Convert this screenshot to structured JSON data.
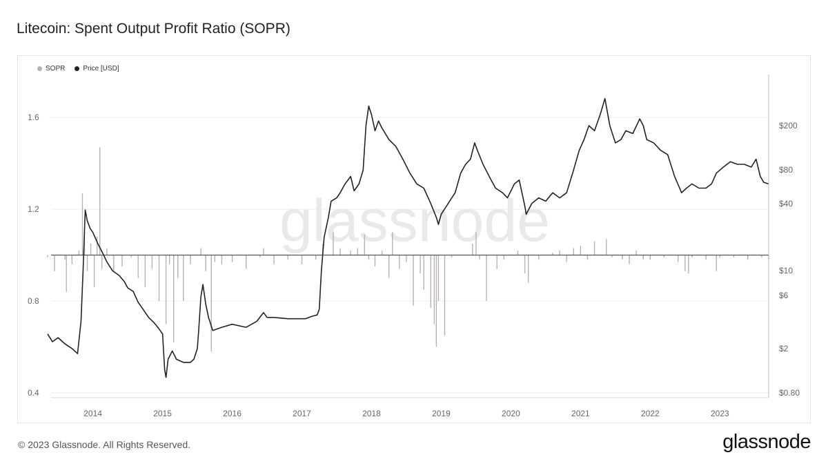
{
  "header": {
    "title": "Litecoin: Spent Output Profit Ratio (SOPR)"
  },
  "footer": {
    "copyright": "© 2023 Glassnode. All Rights Reserved.",
    "brand": "glassnode",
    "watermark": "glassnode"
  },
  "colors": {
    "sopr": "#b8b1b0",
    "price": "#222222",
    "grid": "#ececec",
    "axis": "#666666",
    "baseline": "#555555"
  },
  "chart_data": {
    "type": "line",
    "series": [
      {
        "name": "SOPR",
        "axis": "left",
        "points": [
          [
            2013.35,
            0.99
          ],
          [
            2013.45,
            0.93
          ],
          [
            2013.6,
            0.98
          ],
          [
            2013.62,
            0.84
          ],
          [
            2013.7,
            0.96
          ],
          [
            2013.8,
            1.02
          ],
          [
            2013.85,
            1.27
          ],
          [
            2013.88,
            1.1
          ],
          [
            2013.92,
            0.93
          ],
          [
            2013.97,
            1.05
          ],
          [
            2014.02,
            0.86
          ],
          [
            2014.06,
            1.08
          ],
          [
            2014.1,
            1.47
          ],
          [
            2014.13,
            0.94
          ],
          [
            2014.2,
            1.03
          ],
          [
            2014.3,
            0.93
          ],
          [
            2014.42,
            0.95
          ],
          [
            2014.55,
            0.99
          ],
          [
            2014.65,
            0.9
          ],
          [
            2014.75,
            0.86
          ],
          [
            2014.85,
            0.94
          ],
          [
            2014.95,
            0.8
          ],
          [
            2015.05,
            0.7
          ],
          [
            2015.1,
            0.96
          ],
          [
            2015.16,
            0.62
          ],
          [
            2015.22,
            0.9
          ],
          [
            2015.3,
            0.8
          ],
          [
            2015.4,
            0.96
          ],
          [
            2015.5,
            1.0
          ],
          [
            2015.55,
            1.03
          ],
          [
            2015.62,
            0.93
          ],
          [
            2015.7,
            0.58
          ],
          [
            2015.75,
            0.97
          ],
          [
            2015.85,
            0.96
          ],
          [
            2016.0,
            0.97
          ],
          [
            2016.2,
            0.94
          ],
          [
            2016.4,
            0.99
          ],
          [
            2016.45,
            1.03
          ],
          [
            2016.6,
            0.96
          ],
          [
            2016.8,
            0.98
          ],
          [
            2017.0,
            0.96
          ],
          [
            2017.2,
            0.98
          ],
          [
            2017.3,
            1.05
          ],
          [
            2017.45,
            1.1
          ],
          [
            2017.55,
            1.03
          ],
          [
            2017.7,
            1.02
          ],
          [
            2017.8,
            1.03
          ],
          [
            2017.9,
            1.09
          ],
          [
            2017.96,
            0.98
          ],
          [
            2018.05,
            0.95
          ],
          [
            2018.15,
            1.02
          ],
          [
            2018.25,
            0.9
          ],
          [
            2018.3,
            1.1
          ],
          [
            2018.4,
            0.94
          ],
          [
            2018.5,
            0.97
          ],
          [
            2018.6,
            0.78
          ],
          [
            2018.7,
            0.92
          ],
          [
            2018.75,
            0.85
          ],
          [
            2018.85,
            0.77
          ],
          [
            2018.9,
            0.7
          ],
          [
            2018.93,
            0.6
          ],
          [
            2018.96,
            0.8
          ],
          [
            2019.05,
            0.65
          ],
          [
            2019.15,
            0.99
          ],
          [
            2019.3,
            1.0
          ],
          [
            2019.45,
            1.05
          ],
          [
            2019.5,
            1.1
          ],
          [
            2019.55,
            0.98
          ],
          [
            2019.65,
            0.8
          ],
          [
            2019.8,
            0.94
          ],
          [
            2019.9,
            0.98
          ],
          [
            2020.1,
            1.02
          ],
          [
            2020.2,
            0.92
          ],
          [
            2020.25,
            0.88
          ],
          [
            2020.4,
            0.98
          ],
          [
            2020.6,
            1.01
          ],
          [
            2020.7,
            1.02
          ],
          [
            2020.8,
            0.97
          ],
          [
            2020.9,
            1.03
          ],
          [
            2021.0,
            1.04
          ],
          [
            2021.1,
            0.98
          ],
          [
            2021.2,
            1.06
          ],
          [
            2021.3,
            1.0
          ],
          [
            2021.37,
            1.07
          ],
          [
            2021.45,
            0.99
          ],
          [
            2021.6,
            0.98
          ],
          [
            2021.7,
            0.96
          ],
          [
            2021.8,
            1.02
          ],
          [
            2021.9,
            0.98
          ],
          [
            2022.0,
            0.98
          ],
          [
            2022.2,
            0.99
          ],
          [
            2022.4,
            0.97
          ],
          [
            2022.5,
            0.93
          ],
          [
            2022.55,
            0.92
          ],
          [
            2022.6,
            0.99
          ],
          [
            2022.8,
            0.98
          ],
          [
            2022.95,
            0.93
          ],
          [
            2023.0,
            0.99
          ],
          [
            2023.2,
            0.99
          ],
          [
            2023.4,
            0.98
          ],
          [
            2023.6,
            0.99
          ],
          [
            2023.7,
            0.98
          ]
        ]
      },
      {
        "name": "Price [USD]",
        "axis": "right",
        "points": [
          [
            2013.35,
            2.7
          ],
          [
            2013.42,
            2.3
          ],
          [
            2013.5,
            2.5
          ],
          [
            2013.6,
            2.2
          ],
          [
            2013.7,
            2.0
          ],
          [
            2013.78,
            1.8
          ],
          [
            2013.83,
            3.5
          ],
          [
            2013.86,
            10
          ],
          [
            2013.89,
            35
          ],
          [
            2013.92,
            28
          ],
          [
            2013.96,
            24
          ],
          [
            2014.0,
            22
          ],
          [
            2014.08,
            17
          ],
          [
            2014.15,
            14
          ],
          [
            2014.2,
            12
          ],
          [
            2014.28,
            10
          ],
          [
            2014.38,
            9
          ],
          [
            2014.45,
            8
          ],
          [
            2014.5,
            7
          ],
          [
            2014.58,
            6.5
          ],
          [
            2014.65,
            5.2
          ],
          [
            2014.72,
            4.5
          ],
          [
            2014.8,
            3.8
          ],
          [
            2014.88,
            3.4
          ],
          [
            2014.95,
            3.0
          ],
          [
            2015.0,
            2.7
          ],
          [
            2015.03,
            1.3
          ],
          [
            2015.05,
            1.1
          ],
          [
            2015.08,
            1.6
          ],
          [
            2015.14,
            1.9
          ],
          [
            2015.2,
            1.6
          ],
          [
            2015.3,
            1.5
          ],
          [
            2015.4,
            1.5
          ],
          [
            2015.45,
            1.6
          ],
          [
            2015.5,
            2.0
          ],
          [
            2015.52,
            3.0
          ],
          [
            2015.55,
            5.8
          ],
          [
            2015.58,
            7.5
          ],
          [
            2015.62,
            5
          ],
          [
            2015.66,
            3.8
          ],
          [
            2015.72,
            2.9
          ],
          [
            2015.85,
            3.1
          ],
          [
            2016.0,
            3.3
          ],
          [
            2016.2,
            3.1
          ],
          [
            2016.35,
            3.5
          ],
          [
            2016.45,
            4.2
          ],
          [
            2016.5,
            3.8
          ],
          [
            2016.6,
            3.8
          ],
          [
            2016.8,
            3.7
          ],
          [
            2016.95,
            3.7
          ],
          [
            2017.05,
            3.7
          ],
          [
            2017.15,
            3.9
          ],
          [
            2017.22,
            4.0
          ],
          [
            2017.25,
            4.5
          ],
          [
            2017.28,
            10
          ],
          [
            2017.32,
            20
          ],
          [
            2017.38,
            30
          ],
          [
            2017.42,
            42
          ],
          [
            2017.5,
            45
          ],
          [
            2017.55,
            50
          ],
          [
            2017.62,
            60
          ],
          [
            2017.7,
            70
          ],
          [
            2017.75,
            52
          ],
          [
            2017.82,
            60
          ],
          [
            2017.88,
            80
          ],
          [
            2017.92,
            200
          ],
          [
            2017.96,
            300
          ],
          [
            2018.0,
            250
          ],
          [
            2018.05,
            180
          ],
          [
            2018.1,
            220
          ],
          [
            2018.15,
            190
          ],
          [
            2018.25,
            150
          ],
          [
            2018.35,
            130
          ],
          [
            2018.45,
            100
          ],
          [
            2018.55,
            75
          ],
          [
            2018.65,
            60
          ],
          [
            2018.75,
            55
          ],
          [
            2018.85,
            40
          ],
          [
            2018.93,
            30
          ],
          [
            2018.96,
            26
          ],
          [
            2019.0,
            32
          ],
          [
            2019.1,
            40
          ],
          [
            2019.2,
            50
          ],
          [
            2019.28,
            75
          ],
          [
            2019.35,
            90
          ],
          [
            2019.42,
            100
          ],
          [
            2019.48,
            140
          ],
          [
            2019.52,
            120
          ],
          [
            2019.6,
            90
          ],
          [
            2019.7,
            68
          ],
          [
            2019.78,
            55
          ],
          [
            2019.88,
            50
          ],
          [
            2019.95,
            45
          ],
          [
            2020.05,
            60
          ],
          [
            2020.12,
            65
          ],
          [
            2020.2,
            38
          ],
          [
            2020.22,
            32
          ],
          [
            2020.3,
            40
          ],
          [
            2020.4,
            45
          ],
          [
            2020.5,
            42
          ],
          [
            2020.6,
            50
          ],
          [
            2020.7,
            45
          ],
          [
            2020.8,
            50
          ],
          [
            2020.9,
            80
          ],
          [
            2020.98,
            120
          ],
          [
            2021.05,
            150
          ],
          [
            2021.12,
            200
          ],
          [
            2021.2,
            180
          ],
          [
            2021.28,
            250
          ],
          [
            2021.35,
            350
          ],
          [
            2021.42,
            200
          ],
          [
            2021.5,
            140
          ],
          [
            2021.58,
            150
          ],
          [
            2021.65,
            180
          ],
          [
            2021.75,
            170
          ],
          [
            2021.85,
            230
          ],
          [
            2021.9,
            200
          ],
          [
            2021.95,
            150
          ],
          [
            2022.05,
            140
          ],
          [
            2022.15,
            120
          ],
          [
            2022.25,
            110
          ],
          [
            2022.35,
            70
          ],
          [
            2022.45,
            50
          ],
          [
            2022.52,
            55
          ],
          [
            2022.6,
            60
          ],
          [
            2022.7,
            55
          ],
          [
            2022.8,
            55
          ],
          [
            2022.88,
            60
          ],
          [
            2022.95,
            75
          ],
          [
            2023.05,
            85
          ],
          [
            2023.15,
            95
          ],
          [
            2023.25,
            90
          ],
          [
            2023.35,
            90
          ],
          [
            2023.45,
            85
          ],
          [
            2023.52,
            100
          ],
          [
            2023.58,
            70
          ],
          [
            2023.63,
            62
          ],
          [
            2023.7,
            60
          ]
        ]
      }
    ],
    "y_left": {
      "min": 0.4,
      "max": 1.6,
      "ticks": [
        "0.4",
        "0.8",
        "1.2",
        "1.6"
      ]
    },
    "y_right": {
      "scale": "log",
      "ticks": [
        "$0.80",
        "$2",
        "$6",
        "$10",
        "$40",
        "$80",
        "$200"
      ],
      "tick_values": [
        0.8,
        2,
        6,
        10,
        40,
        80,
        200
      ]
    },
    "x": {
      "min": 2013.4,
      "max": 2023.7,
      "ticks": [
        "2014",
        "2015",
        "2016",
        "2017",
        "2018",
        "2019",
        "2020",
        "2021",
        "2022",
        "2023"
      ]
    },
    "baseline": 1.0,
    "grid": true,
    "legend": "top-left"
  }
}
